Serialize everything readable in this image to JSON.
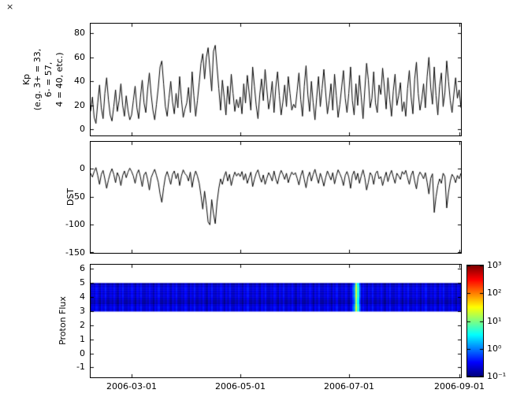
{
  "decor": {
    "corner_mark": "×"
  },
  "x_axis": {
    "tick_labels": [
      "2006-03-01",
      "2006-05-01",
      "2006-07-01",
      "2006-09-01"
    ],
    "tick_days": [
      23,
      84,
      145,
      207
    ],
    "domain_days": [
      0,
      208
    ]
  },
  "chart_data": [
    {
      "type": "line",
      "name": "kp-index",
      "ylabel_lines": [
        "Kp",
        "(e.g. 3+ = 33,",
        "6- = 57,",
        "4 = 40, etc.)"
      ],
      "ylim": [
        -5,
        88
      ],
      "yticks": [
        80,
        60,
        40,
        20,
        0
      ],
      "line_color": "#000000",
      "values": [
        15,
        27,
        10,
        5,
        22,
        37,
        18,
        9,
        30,
        43,
        25,
        12,
        7,
        19,
        33,
        15,
        24,
        38,
        20,
        11,
        28,
        16,
        8,
        12,
        24,
        36,
        18,
        9,
        27,
        41,
        22,
        14,
        33,
        47,
        29,
        16,
        8,
        21,
        35,
        52,
        57,
        38,
        19,
        11,
        26,
        40,
        23,
        13,
        30,
        18,
        44,
        25,
        10,
        17,
        22,
        35,
        14,
        48,
        28,
        11,
        24,
        39,
        55,
        63,
        42,
        60,
        68,
        50,
        32,
        65,
        70,
        52,
        34,
        16,
        41,
        27,
        12,
        36,
        21,
        46,
        30,
        15,
        25,
        18,
        27,
        13,
        38,
        22,
        45,
        31,
        16,
        52,
        36,
        20,
        9,
        29,
        42,
        24,
        50,
        33,
        17,
        26,
        40,
        14,
        35,
        48,
        28,
        12,
        23,
        37,
        19,
        44,
        30,
        16,
        21,
        18,
        32,
        47,
        25,
        11,
        36,
        53,
        29,
        15,
        40,
        22,
        8,
        27,
        44,
        19,
        34,
        50,
        31,
        13,
        24,
        38,
        16,
        46,
        28,
        10,
        21,
        35,
        49,
        26,
        14,
        30,
        52,
        24,
        12,
        38,
        20,
        45,
        27,
        9,
        33,
        55,
        41,
        18,
        26,
        48,
        22,
        14,
        37,
        29,
        51,
        35,
        17,
        43,
        25,
        11,
        32,
        46,
        20,
        28,
        39,
        15,
        23,
        11,
        34,
        49,
        27,
        13,
        42,
        56,
        30,
        16,
        25,
        38,
        18,
        44,
        60,
        35,
        21,
        52,
        28,
        12,
        36,
        47,
        19,
        31,
        57,
        40,
        24,
        14,
        29,
        43,
        26,
        33,
        18
      ]
    },
    {
      "type": "line",
      "name": "dst-index",
      "ylabel": "DST",
      "ylim": [
        -150,
        48
      ],
      "yticks": [
        0,
        -50,
        -100,
        -150
      ],
      "line_color": "#000000",
      "values": [
        -8,
        -15,
        -5,
        2,
        -12,
        -28,
        -10,
        -3,
        -18,
        -35,
        -20,
        -8,
        0,
        -10,
        -25,
        -7,
        -14,
        -30,
        -12,
        -4,
        -16,
        -6,
        1,
        -5,
        -13,
        -26,
        -9,
        -2,
        -15,
        -32,
        -11,
        -6,
        -19,
        -38,
        -16,
        -8,
        -1,
        -12,
        -24,
        -45,
        -60,
        -34,
        -14,
        -5,
        -16,
        -28,
        -10,
        -4,
        -18,
        -8,
        -30,
        -13,
        -2,
        -9,
        -12,
        -22,
        -6,
        -33,
        -15,
        -4,
        -13,
        -26,
        -48,
        -72,
        -40,
        -65,
        -95,
        -100,
        -55,
        -80,
        -98,
        -60,
        -35,
        -18,
        -28,
        -14,
        -5,
        -22,
        -10,
        -30,
        -16,
        -6,
        -13,
        -8,
        -14,
        -5,
        -20,
        -9,
        -26,
        -16,
        -6,
        -32,
        -19,
        -8,
        -2,
        -15,
        -24,
        -11,
        -28,
        -17,
        -7,
        -13,
        -22,
        -4,
        -18,
        -27,
        -12,
        -3,
        -10,
        -19,
        -8,
        -25,
        -14,
        -6,
        -11,
        -7,
        -17,
        -29,
        -13,
        -3,
        -19,
        -34,
        -15,
        -6,
        -22,
        -10,
        -1,
        -14,
        -26,
        -8,
        -18,
        -31,
        -16,
        -4,
        -12,
        -20,
        -7,
        -27,
        -13,
        -2,
        -9,
        -17,
        -30,
        -12,
        -5,
        -15,
        -35,
        -12,
        -4,
        -20,
        -8,
        -26,
        -13,
        -2,
        -16,
        -38,
        -24,
        -7,
        -12,
        -28,
        -9,
        -4,
        -18,
        -14,
        -30,
        -17,
        -6,
        -23,
        -11,
        -3,
        -15,
        -26,
        -8,
        -13,
        -19,
        -5,
        -10,
        -3,
        -16,
        -28,
        -12,
        -4,
        -22,
        -36,
        -14,
        -6,
        -11,
        -18,
        -7,
        -24,
        -45,
        -17,
        -9,
        -78,
        -50,
        -30,
        -18,
        -26,
        -8,
        -14,
        -70,
        -42,
        -22,
        -10,
        -15,
        -25,
        -12,
        -18,
        -8
      ]
    },
    {
      "type": "heatmap",
      "name": "proton-flux-spectrogram",
      "ylabel": "Proton Flux",
      "ylim": [
        -1.7,
        6.3
      ],
      "yticks": [
        6,
        5,
        4,
        3,
        2,
        1,
        0,
        -1
      ],
      "band_y": [
        3,
        5
      ],
      "colormap": "jet",
      "scale": "log10",
      "clim": [
        0.1,
        1000
      ],
      "flux_base_pattern": [
        0.18,
        0.25,
        0.2,
        0.32,
        0.22,
        0.15,
        0.28,
        0.21,
        0.35,
        0.19
      ],
      "flux_length": 209,
      "flux_overrides": {
        "147": 0.6,
        "148": 1.2,
        "149": 20,
        "150": 4,
        "151": 0.6
      },
      "band_row_gain": [
        0.7,
        1.0,
        1.15,
        1.05,
        0.95,
        1.1,
        0.9,
        0.75
      ],
      "colorbar_tick_labels": [
        "10³",
        "10²",
        "10¹",
        "10⁰",
        "10⁻¹"
      ]
    }
  ]
}
